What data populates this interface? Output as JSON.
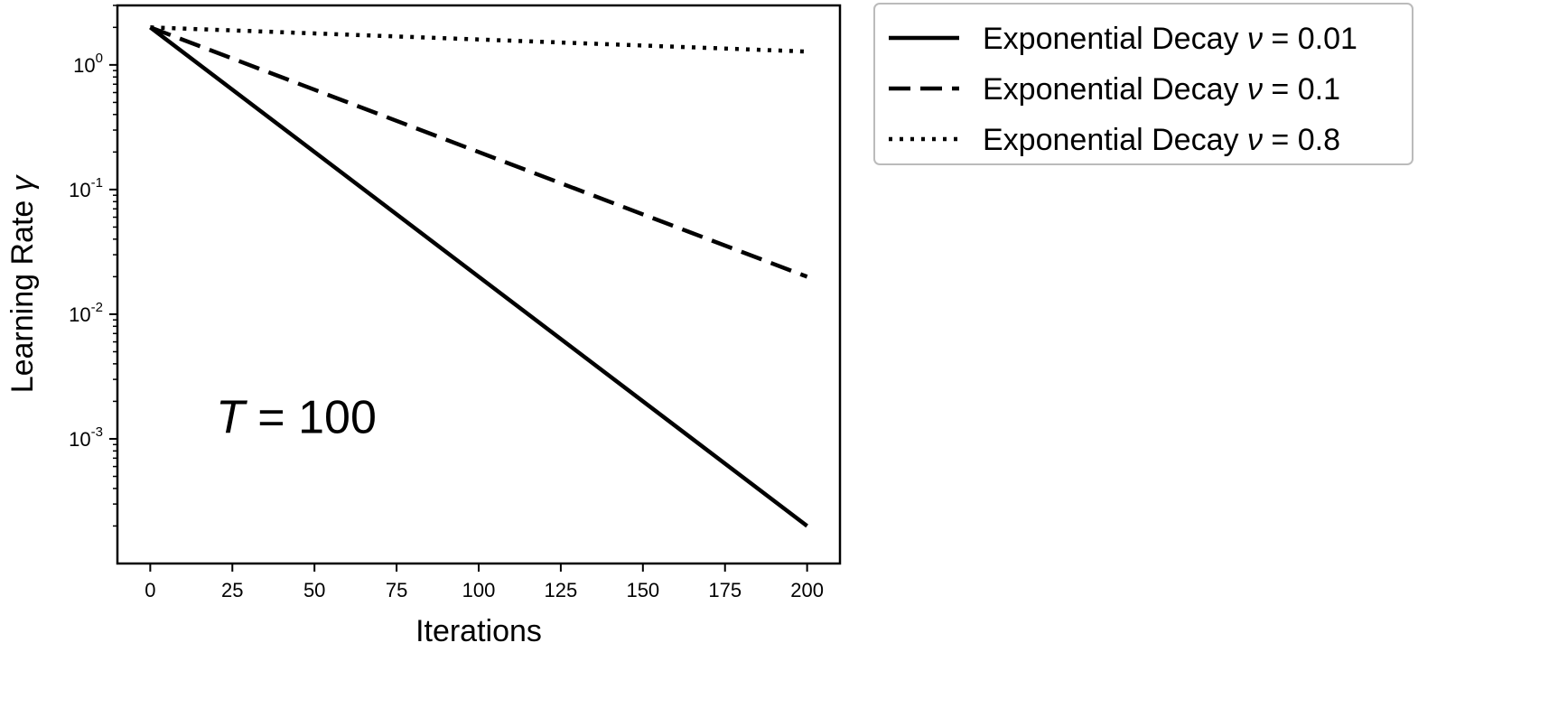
{
  "chart_data": {
    "type": "line",
    "title": "",
    "xlabel": "Iterations",
    "ylabel": "Learning Rate",
    "ylabel_symbol": "γ",
    "xlim": [
      -10,
      210
    ],
    "ylim": [
      0.0001,
      3
    ],
    "xscale": "linear",
    "yscale": "log",
    "grid": false,
    "legend_position": "outside-top-right",
    "x_ticks": [
      {
        "value": 0,
        "label": "0"
      },
      {
        "value": 25,
        "label": "25"
      },
      {
        "value": 50,
        "label": "50"
      },
      {
        "value": 75,
        "label": "75"
      },
      {
        "value": 100,
        "label": "100"
      },
      {
        "value": 125,
        "label": "125"
      },
      {
        "value": 150,
        "label": "150"
      },
      {
        "value": 175,
        "label": "175"
      },
      {
        "value": 200,
        "label": "200"
      }
    ],
    "y_ticks": [
      {
        "value": 1,
        "base": "10",
        "exp": "0"
      },
      {
        "value": 0.1,
        "base": "10",
        "exp": "-1"
      },
      {
        "value": 0.01,
        "base": "10",
        "exp": "-2"
      },
      {
        "value": 0.001,
        "base": "10",
        "exp": "-3"
      }
    ],
    "annotation": {
      "symbol": "T",
      "text": " = 100",
      "x": 20,
      "y": 0.0015
    },
    "series": [
      {
        "name": "Exponential Decay",
        "nu_symbol": "ν",
        "nu_value": "= 0.01",
        "style": "solid",
        "x": [
          0,
          200
        ],
        "y": [
          2.0,
          0.0002
        ]
      },
      {
        "name": "Exponential Decay",
        "nu_symbol": "ν",
        "nu_value": "= 0.1",
        "style": "dashed",
        "x": [
          0,
          200
        ],
        "y": [
          2.0,
          0.02
        ]
      },
      {
        "name": "Exponential Decay",
        "nu_symbol": "ν",
        "nu_value": "= 0.8",
        "style": "dotted",
        "x": [
          0,
          200
        ],
        "y": [
          2.0,
          1.28
        ]
      }
    ]
  }
}
